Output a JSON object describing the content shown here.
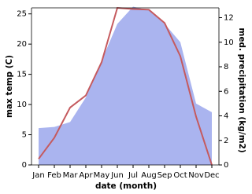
{
  "chart_data": {
    "type": "combo",
    "xlabel": "date (month)",
    "ylabel": "max temp (C)",
    "y2label": "med. precipitation (kg/m2)",
    "categories": [
      "Jan",
      "Feb",
      "Mar",
      "Apr",
      "May",
      "Jun",
      "Jul",
      "Aug",
      "Sep",
      "Oct",
      "Nov",
      "Dec"
    ],
    "series": [
      {
        "name": "med. precipitation",
        "type": "area",
        "axis": "y2",
        "color": "#aab4ef",
        "values": [
          3.0,
          3.1,
          3.5,
          5.5,
          8.5,
          11.5,
          12.9,
          12.6,
          11.5,
          10.0,
          5.0,
          4.3
        ]
      },
      {
        "name": "max temp",
        "type": "line",
        "axis": "y",
        "color": "#c55a5e",
        "values": [
          1.0,
          4.5,
          9.5,
          11.5,
          17.0,
          26.0,
          25.8,
          25.7,
          23.5,
          18.0,
          8.0,
          0.0
        ]
      }
    ],
    "ylim": [
      0,
      26
    ],
    "yticks": [
      0,
      5,
      10,
      15,
      20,
      25
    ],
    "y2lim": [
      0,
      12.8
    ],
    "y2ticks": [
      0,
      2,
      4,
      6,
      8,
      10,
      12
    ]
  }
}
